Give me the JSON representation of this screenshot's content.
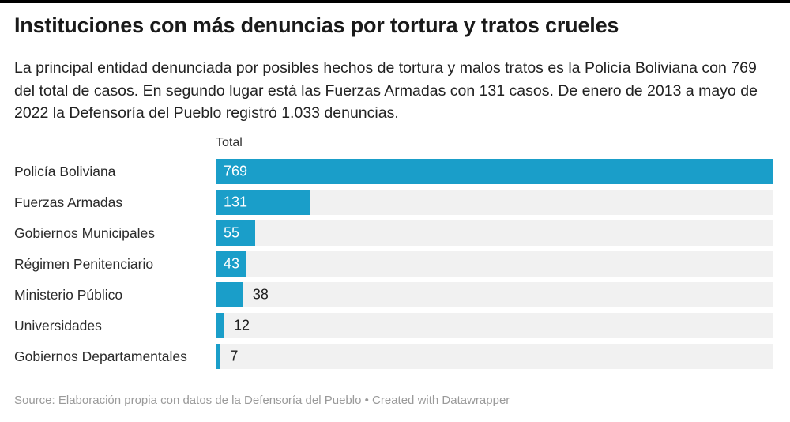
{
  "header": {
    "title": "Instituciones con más denuncias por tortura y tratos crueles",
    "description": "La principal entidad denunciada por posibles hechos de tortura y malos tratos es la Policía Boliviana con 769 del total de casos. En segundo lugar está las Fuerzas Armadas con 131 casos. De enero de 2013 a mayo de 2022 la Defensoría del Pueblo registró 1.033 denuncias."
  },
  "chart_data": {
    "type": "bar",
    "orientation": "horizontal",
    "value_column_header": "Total",
    "categories": [
      "Policía Boliviana",
      "Fuerzas Armadas",
      "Gobiernos Municipales",
      "Régimen Penitenciario",
      "Ministerio Público",
      "Universidades",
      "Gobiernos Departamentales"
    ],
    "values": [
      769,
      131,
      55,
      43,
      38,
      12,
      7
    ],
    "value_label_placement": [
      "inside",
      "inside",
      "inside",
      "inside",
      "outside",
      "outside",
      "outside"
    ],
    "xlim": [
      0,
      769
    ],
    "grid": false,
    "legend": "none",
    "colors": {
      "bar": "#1a9ec9",
      "track": "#f1f1f1",
      "value_inside": "#ffffff",
      "value_outside": "#1d1d1d"
    }
  },
  "footer": {
    "text": "Source: Elaboración propia con datos de la Defensoría del Pueblo • Created with Datawrapper"
  }
}
